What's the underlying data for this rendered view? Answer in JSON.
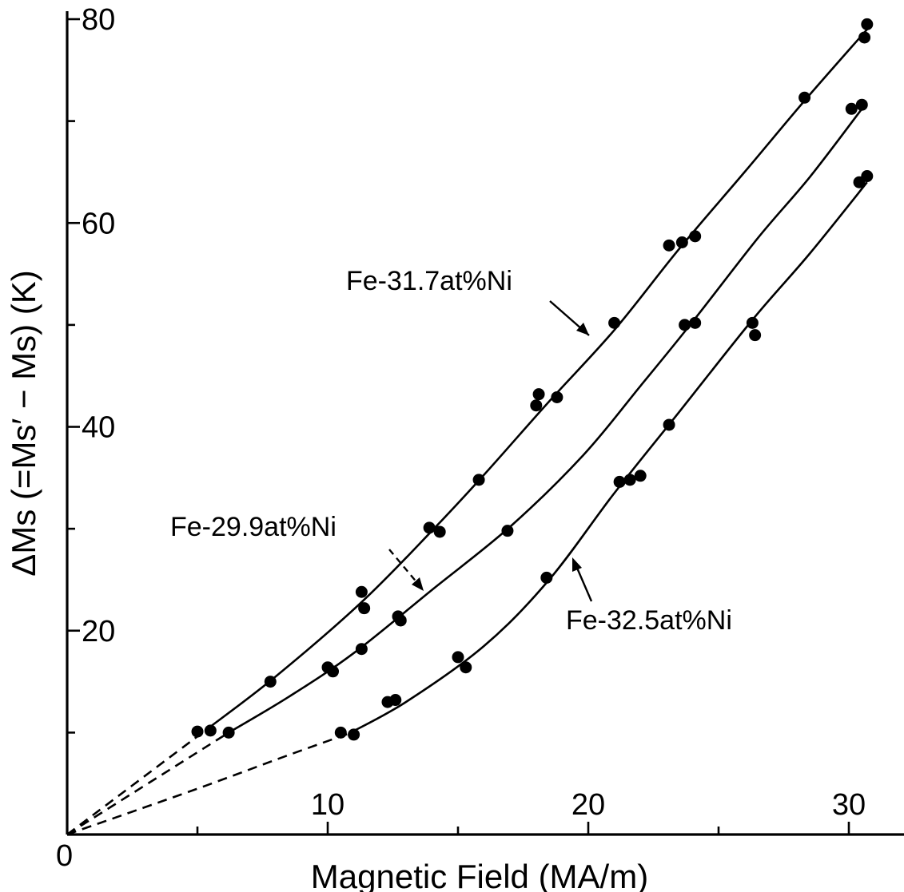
{
  "chart_data": {
    "type": "scatter",
    "title": "",
    "xlabel": "Magnetic Field (MA/m)",
    "ylabel": "ΔMs (=Ms′ − Ms) (K)",
    "xlim": [
      0,
      32
    ],
    "ylim": [
      0,
      82
    ],
    "x_ticks": [
      10,
      20,
      30
    ],
    "y_ticks": [
      20,
      40,
      60,
      80
    ],
    "origin_label": "0",
    "grid": false,
    "series": [
      {
        "name": "Fe-31.7at%Ni",
        "points": [
          [
            5.0,
            10.1
          ],
          [
            5.5,
            10.2
          ],
          [
            7.8,
            15.0
          ],
          [
            11.3,
            23.8
          ],
          [
            11.4,
            22.2
          ],
          [
            13.9,
            30.1
          ],
          [
            14.3,
            29.7
          ],
          [
            15.8,
            34.8
          ],
          [
            18.0,
            42.1
          ],
          [
            18.1,
            43.2
          ],
          [
            18.8,
            42.9
          ],
          [
            21.0,
            50.2
          ],
          [
            23.1,
            57.8
          ],
          [
            23.6,
            58.1
          ],
          [
            24.1,
            58.7
          ],
          [
            28.3,
            72.3
          ],
          [
            30.6,
            78.2
          ],
          [
            30.7,
            79.5
          ]
        ],
        "curve": [
          [
            0,
            0
          ],
          [
            5.3,
            10.2
          ],
          [
            8,
            15.5
          ],
          [
            11.3,
            22.8
          ],
          [
            14,
            29.8
          ],
          [
            16,
            35.3
          ],
          [
            18.5,
            42.5
          ],
          [
            21,
            49.5
          ],
          [
            23.5,
            57.5
          ],
          [
            26,
            65.0
          ],
          [
            28.3,
            72.0
          ],
          [
            30.7,
            79.0
          ]
        ],
        "extrapolated_until": 5.3
      },
      {
        "name": "Fe-29.9at%Ni",
        "points": [
          [
            6.2,
            10.0
          ],
          [
            10.0,
            16.4
          ],
          [
            10.2,
            16.0
          ],
          [
            11.3,
            18.2
          ],
          [
            12.7,
            21.4
          ],
          [
            12.8,
            21.0
          ],
          [
            16.9,
            29.8
          ],
          [
            23.7,
            50.0
          ],
          [
            24.1,
            50.2
          ],
          [
            30.1,
            71.2
          ],
          [
            30.5,
            71.6
          ]
        ],
        "curve": [
          [
            0,
            0
          ],
          [
            6.2,
            10.0
          ],
          [
            8.5,
            13.5
          ],
          [
            11,
            17.8
          ],
          [
            14,
            24.0
          ],
          [
            17,
            30.2
          ],
          [
            19.8,
            37.2
          ],
          [
            22,
            44.0
          ],
          [
            24,
            50.3
          ],
          [
            26.5,
            58.5
          ],
          [
            28.5,
            64.5
          ],
          [
            30.5,
            71.2
          ]
        ],
        "extrapolated_until": 6.2
      },
      {
        "name": "Fe-32.5at%Ni",
        "points": [
          [
            10.5,
            10.0
          ],
          [
            11.0,
            9.8
          ],
          [
            12.3,
            13.0
          ],
          [
            12.6,
            13.2
          ],
          [
            15.0,
            17.4
          ],
          [
            15.3,
            16.4
          ],
          [
            18.4,
            25.2
          ],
          [
            21.2,
            34.6
          ],
          [
            21.6,
            34.8
          ],
          [
            22.0,
            35.2
          ],
          [
            23.1,
            40.2
          ],
          [
            26.3,
            50.2
          ],
          [
            26.4,
            49.0
          ],
          [
            30.4,
            64.0
          ],
          [
            30.7,
            64.6
          ]
        ],
        "curve": [
          [
            0,
            0
          ],
          [
            5,
            4.5
          ],
          [
            8.5,
            7.8
          ],
          [
            10.8,
            9.9
          ],
          [
            13,
            13.0
          ],
          [
            16,
            18.5
          ],
          [
            18.5,
            25.0
          ],
          [
            21,
            33.5
          ],
          [
            23.5,
            41.5
          ],
          [
            26.3,
            50.5
          ],
          [
            28.5,
            57.0
          ],
          [
            30.7,
            64.0
          ]
        ],
        "extrapolated_until": 10.8
      }
    ]
  }
}
